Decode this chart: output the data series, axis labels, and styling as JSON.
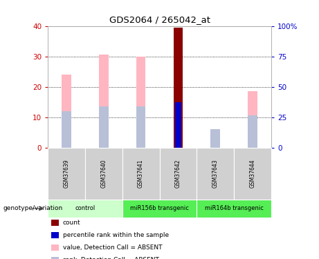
{
  "title": "GDS2064 / 265042_at",
  "samples": [
    "GSM37639",
    "GSM37640",
    "GSM37641",
    "GSM37642",
    "GSM37643",
    "GSM37644"
  ],
  "value_bars": [
    24.0,
    30.5,
    30.0,
    15.0,
    0.0,
    18.5
  ],
  "rank_bars": [
    12.0,
    13.5,
    13.5,
    0.0,
    6.0,
    10.5
  ],
  "count_bar_idx": 3,
  "count_bar_height": 39.5,
  "blue_bar_idx": 3,
  "blue_bar_height": 15.0,
  "count_color": "#8b0000",
  "value_color": "#ffb6c1",
  "rank_color": "#b8c0d8",
  "blue_color": "#0000cc",
  "bar_width": 0.25,
  "ylim_left": [
    0,
    40
  ],
  "ylim_right": [
    0,
    100
  ],
  "yticks_left": [
    0,
    10,
    20,
    30,
    40
  ],
  "yticks_right": [
    0,
    25,
    50,
    75,
    100
  ],
  "ytick_labels_right": [
    "0",
    "25",
    "50",
    "75",
    "100%"
  ],
  "left_tick_color": "#cc0000",
  "right_tick_color": "#0000cc",
  "group_configs": [
    {
      "label": "control",
      "start": 0,
      "end": 2,
      "color": "#ccffcc"
    },
    {
      "label": "miR156b transgenic",
      "start": 2,
      "end": 4,
      "color": "#55ee55"
    },
    {
      "label": "miR164b transgenic",
      "start": 4,
      "end": 6,
      "color": "#55ee55"
    }
  ],
  "legend_items": [
    {
      "color": "#8b0000",
      "label": "count"
    },
    {
      "color": "#0000cc",
      "label": "percentile rank within the sample"
    },
    {
      "color": "#ffb6c1",
      "label": "value, Detection Call = ABSENT"
    },
    {
      "color": "#b8c0d8",
      "label": "rank, Detection Call = ABSENT"
    }
  ],
  "genotype_label": "genotype/variation"
}
